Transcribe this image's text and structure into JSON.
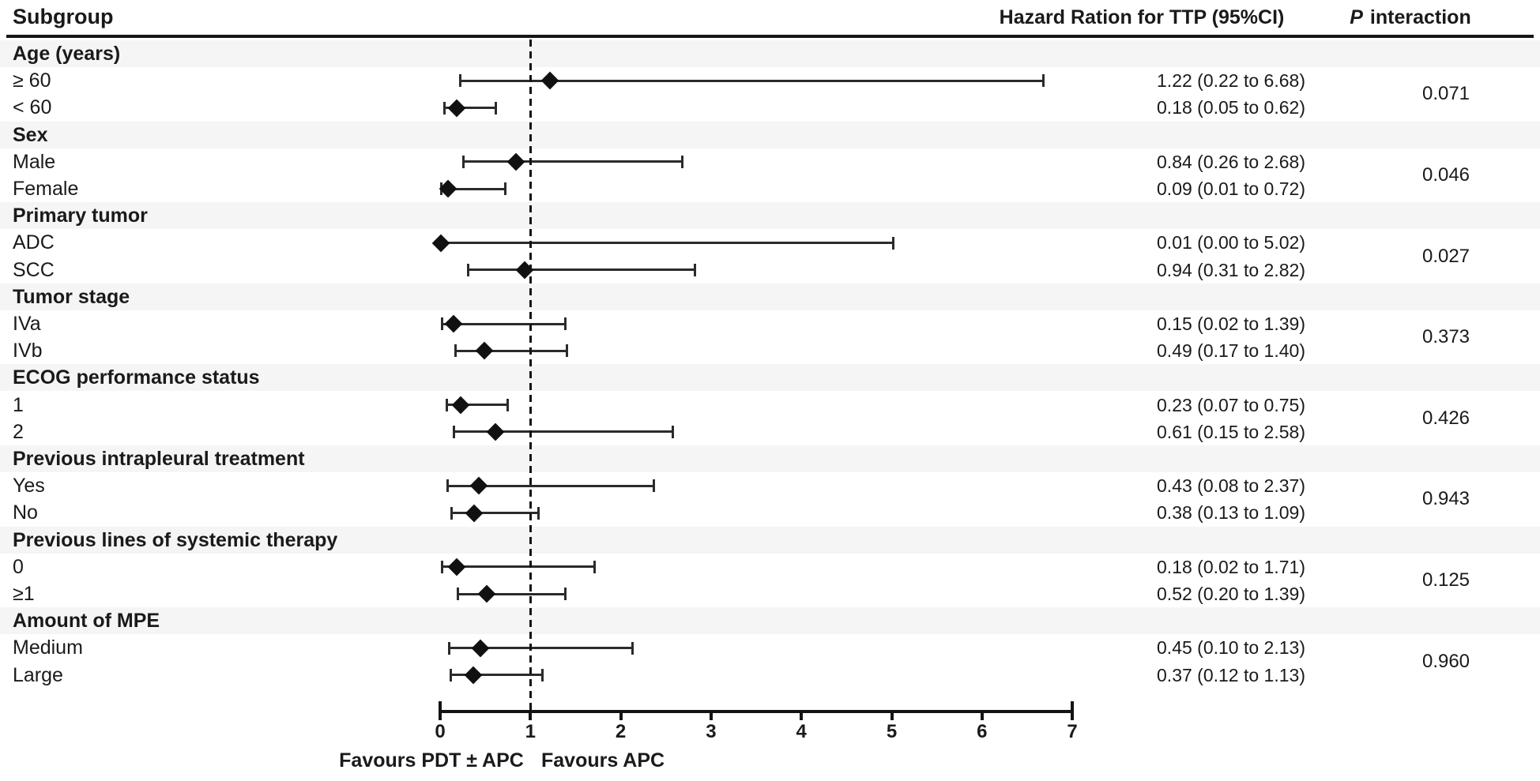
{
  "header": {
    "subgroup_label": "Subgroup",
    "hr_column_label": "Hazard Ration for TTP (95%CI)",
    "p_column_label_italic": "P",
    "p_column_label_rest": "interaction"
  },
  "colors": {
    "text": "#1a1a1a",
    "line": "#141414",
    "marker": "#111111",
    "category_band": "#f5f5f5",
    "background": "#ffffff"
  },
  "chart_data": {
    "type": "forest",
    "xlabel": "",
    "ylabel": "",
    "axis": {
      "xlim": [
        0,
        7
      ],
      "ticks": [
        0,
        1,
        2,
        3,
        4,
        5,
        6,
        7
      ],
      "reference_line": 1,
      "grid": false
    },
    "footer_labels": {
      "left": "Favours PDT ± APC",
      "right": "Favours APC"
    },
    "groups": [
      {
        "label": "Age (years)",
        "p_interaction": "0.071",
        "items": [
          {
            "label": "≥ 60",
            "hr": 1.22,
            "low": 0.22,
            "high": 6.68,
            "hr_text": "1.22 (0.22 to 6.68)"
          },
          {
            "label": "< 60",
            "hr": 0.18,
            "low": 0.05,
            "high": 0.62,
            "hr_text": "0.18 (0.05 to 0.62)"
          }
        ]
      },
      {
        "label": "Sex",
        "p_interaction": "0.046",
        "items": [
          {
            "label": "Male",
            "hr": 0.84,
            "low": 0.26,
            "high": 2.68,
            "hr_text": "0.84 (0.26 to 2.68)"
          },
          {
            "label": "Female",
            "hr": 0.09,
            "low": 0.01,
            "high": 0.72,
            "hr_text": "0.09 (0.01 to 0.72)"
          }
        ]
      },
      {
        "label": "Primary tumor",
        "p_interaction": "0.027",
        "items": [
          {
            "label": "ADC",
            "hr": 0.01,
            "low": 0.0,
            "high": 5.02,
            "hr_text": "0.01 (0.00 to 5.02)"
          },
          {
            "label": "SCC",
            "hr": 0.94,
            "low": 0.31,
            "high": 2.82,
            "hr_text": "0.94 (0.31 to 2.82)"
          }
        ]
      },
      {
        "label": "Tumor stage",
        "p_interaction": "0.373",
        "items": [
          {
            "label": "IVa",
            "hr": 0.15,
            "low": 0.02,
            "high": 1.39,
            "hr_text": "0.15 (0.02 to 1.39)"
          },
          {
            "label": "IVb",
            "hr": 0.49,
            "low": 0.17,
            "high": 1.4,
            "hr_text": "0.49 (0.17 to 1.40)"
          }
        ]
      },
      {
        "label": "ECOG performance status",
        "p_interaction": "0.426",
        "items": [
          {
            "label": "1",
            "hr": 0.23,
            "low": 0.07,
            "high": 0.75,
            "hr_text": "0.23 (0.07 to 0.75)"
          },
          {
            "label": "2",
            "hr": 0.61,
            "low": 0.15,
            "high": 2.58,
            "hr_text": "0.61 (0.15 to 2.58)"
          }
        ]
      },
      {
        "label": "Previous intrapleural treatment",
        "p_interaction": "0.943",
        "items": [
          {
            "label": "Yes",
            "hr": 0.43,
            "low": 0.08,
            "high": 2.37,
            "hr_text": "0.43 (0.08 to 2.37)"
          },
          {
            "label": "No",
            "hr": 0.38,
            "low": 0.13,
            "high": 1.09,
            "hr_text": "0.38 (0.13 to 1.09)"
          }
        ]
      },
      {
        "label": "Previous lines of systemic therapy",
        "p_interaction": "0.125",
        "items": [
          {
            "label": "0",
            "hr": 0.18,
            "low": 0.02,
            "high": 1.71,
            "hr_text": "0.18 (0.02 to 1.71)"
          },
          {
            "label": "≥1",
            "hr": 0.52,
            "low": 0.2,
            "high": 1.39,
            "hr_text": "0.52 (0.20 to 1.39)"
          }
        ]
      },
      {
        "label": "Amount of MPE",
        "p_interaction": "0.960",
        "items": [
          {
            "label": "Medium",
            "hr": 0.45,
            "low": 0.1,
            "high": 2.13,
            "hr_text": "0.45 (0.10 to 2.13)"
          },
          {
            "label": "Large",
            "hr": 0.37,
            "low": 0.12,
            "high": 1.13,
            "hr_text": "0.37 (0.12 to 1.13)"
          }
        ]
      }
    ]
  }
}
